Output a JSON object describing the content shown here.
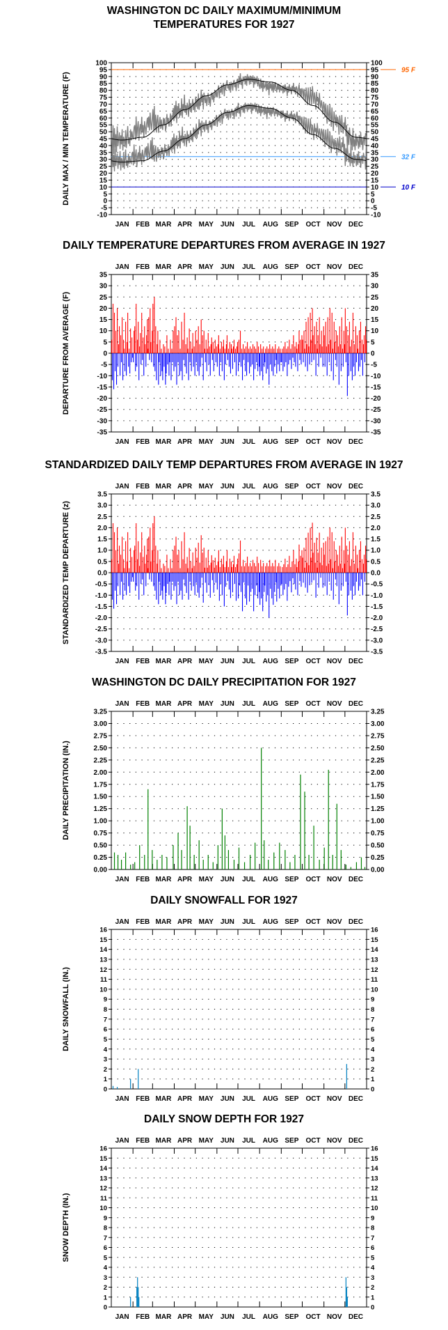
{
  "months": [
    "JAN",
    "FEB",
    "MAR",
    "APR",
    "MAY",
    "JUN",
    "JUL",
    "AUG",
    "SEP",
    "OCT",
    "NOV",
    "DEC"
  ],
  "colors": {
    "axis": "#000000",
    "max_temp_line": "#808080",
    "normal_line": "#000000",
    "ref_95": "#ff6600",
    "ref_32": "#3399ff",
    "ref_10": "#0000cc",
    "above_average": "#ff0000",
    "below_average": "#0000ff",
    "precip": "#008000",
    "snow": "#0080c0"
  },
  "chart_data": [
    {
      "id": "temps",
      "type": "line",
      "title": "WASHINGTON DC DAILY MAXIMUM/MINIMUM\nTEMPERATURES FOR 1927",
      "ylabel": "DAILY MAX / MIN TEMPERATURE (F)",
      "ylim": [
        -10,
        100
      ],
      "ystep": 5,
      "ref_lines": [
        {
          "value": 95,
          "label": "95 F",
          "color": "#ff6600"
        },
        {
          "value": 32,
          "label": "32 F",
          "color": "#3399ff"
        },
        {
          "value": 10,
          "label": "10 F",
          "color": "#0000cc"
        }
      ],
      "normal_max_monthly": [
        44,
        46,
        55,
        66,
        76,
        84,
        88,
        86,
        80,
        69,
        57,
        46
      ],
      "normal_min_monthly": [
        28,
        29,
        36,
        45,
        55,
        64,
        69,
        67,
        60,
        48,
        38,
        30
      ],
      "observed_max_monthly": [
        43,
        51,
        58,
        67,
        73,
        83,
        89,
        84,
        81,
        72,
        57,
        42
      ],
      "observed_min_monthly": [
        28,
        31,
        37,
        45,
        54,
        63,
        69,
        66,
        61,
        49,
        40,
        29
      ],
      "grid": true
    },
    {
      "id": "departures",
      "type": "bar",
      "title": "DAILY TEMPERATURE DEPARTURES FROM AVERAGE IN 1927",
      "ylabel": "DEPARTURE FROM AVERAGE (F)",
      "ylim": [
        -35,
        35
      ],
      "ystep": 5,
      "monthly_pattern": [
        [
          6,
          -12,
          22,
          -16,
          18,
          -8,
          10,
          -14,
          20,
          -6,
          4,
          12,
          -10,
          8,
          -4,
          16,
          -12,
          6,
          2,
          -8,
          14,
          -10,
          5,
          18,
          -6,
          2,
          -9,
          11,
          -4,
          7,
          -2
        ],
        [
          -4,
          10,
          12,
          -8,
          22,
          -6,
          6,
          14,
          -12,
          3,
          9,
          -5,
          18,
          -3,
          7,
          -10,
          12,
          4,
          -6,
          8,
          15,
          2,
          16,
          -3,
          20,
          5,
          -4,
          10
        ],
        [
          22,
          -6,
          25,
          -8,
          12,
          -12,
          4,
          10,
          -14,
          -4,
          6,
          -10,
          2,
          -8,
          -12,
          4,
          -6,
          3,
          -14,
          -9,
          8,
          -5,
          2,
          -10,
          -4,
          6,
          -12,
          2,
          -4,
          10,
          -8
        ],
        [
          12,
          -6,
          16,
          -14,
          8,
          -4,
          10,
          -10,
          2,
          -8,
          14,
          -12,
          6,
          -3,
          18,
          -6,
          4,
          -9,
          7,
          2,
          -12,
          11,
          -4,
          5,
          -8,
          2,
          9,
          -6,
          3,
          -10
        ],
        [
          10,
          -4,
          6,
          -8,
          12,
          -10,
          4,
          -6,
          15,
          -2,
          8,
          -12,
          10,
          2,
          -4,
          6,
          -8,
          2,
          9,
          -5,
          3,
          -10,
          4,
          7,
          -3,
          5,
          -8,
          2,
          6,
          -4,
          3
        ],
        [
          -6,
          4,
          8,
          -10,
          2,
          -4,
          5,
          -8,
          3,
          6,
          -12,
          2,
          -5,
          4,
          8,
          -3,
          2,
          -6,
          5,
          -9,
          4,
          2,
          -7,
          3,
          6,
          -4,
          2,
          -10,
          3,
          5
        ],
        [
          -8,
          6,
          -4,
          10,
          -6,
          2,
          -12,
          4,
          -3,
          2,
          -8,
          3,
          -10,
          5,
          -4,
          2,
          -9,
          3,
          -6,
          2,
          -5,
          4,
          -12,
          3,
          -7,
          2,
          -4,
          5,
          -8,
          3,
          -6
        ],
        [
          -10,
          4,
          -8,
          2,
          -12,
          3,
          -6,
          -4,
          2,
          -9,
          3,
          -7,
          2,
          -14,
          4,
          -5,
          2,
          -8,
          3,
          -10,
          2,
          -6,
          4,
          -3,
          -9,
          2,
          -5,
          3,
          -8,
          2,
          -4
        ],
        [
          -4,
          2,
          -8,
          3,
          -6,
          5,
          -4,
          2,
          -10,
          3,
          -5,
          6,
          -3,
          2,
          -7,
          4,
          -2,
          8,
          -4,
          3,
          -6,
          5,
          2,
          -8,
          4,
          10,
          -3,
          6,
          -5,
          8
        ],
        [
          6,
          -4,
          10,
          2,
          -6,
          14,
          4,
          -8,
          16,
          3,
          -5,
          18,
          6,
          -4,
          20,
          8,
          -3,
          12,
          4,
          -10,
          14,
          2,
          8,
          -6,
          16,
          4,
          -2,
          10,
          3,
          -6,
          12
        ],
        [
          8,
          -6,
          14,
          3,
          -10,
          16,
          4,
          -4,
          20,
          6,
          -8,
          18,
          2,
          -12,
          14,
          5,
          -3,
          10,
          -6,
          8,
          3,
          -14,
          12,
          4,
          -8,
          16,
          2,
          -6,
          10,
          4
        ],
        [
          20,
          -4,
          12,
          -19,
          8,
          -10,
          14,
          3,
          -8,
          6,
          -12,
          18,
          -6,
          4,
          -10,
          12,
          -4,
          8,
          2,
          -8,
          10,
          -6,
          14,
          -3,
          6,
          -10,
          4,
          8,
          -4,
          12,
          6
        ]
      ],
      "grid": true
    },
    {
      "id": "std_departures",
      "type": "bar",
      "title": "STANDARDIZED DAILY TEMP DEPARTURES FROM AVERAGE IN 1927",
      "ylabel": "STANDARDIZED TEMP DEPARTURE (z)",
      "ylim": [
        -3.5,
        3.5
      ],
      "ystep": 0.5,
      "scale_from": "departures",
      "divisor_monthly": [
        10,
        10,
        10,
        10,
        9,
        8,
        7,
        7,
        8,
        9,
        10,
        10
      ],
      "grid": true
    },
    {
      "id": "precip",
      "type": "bar",
      "title": "WASHINGTON DC DAILY PRECIPITATION FOR 1927",
      "ylabel": "DAILY PRECIPITATION (IN.)",
      "ylim": [
        0,
        3.25
      ],
      "ystep": 0.25,
      "events": [
        {
          "day": 4,
          "value": 0.35
        },
        {
          "day": 9,
          "value": 0.3
        },
        {
          "day": 14,
          "value": 0.2
        },
        {
          "day": 20,
          "value": 0.35
        },
        {
          "day": 27,
          "value": 0.1
        },
        {
          "day": 33,
          "value": 0.15
        },
        {
          "day": 40,
          "value": 0.5
        },
        {
          "day": 47,
          "value": 0.3
        },
        {
          "day": 52,
          "value": 1.65
        },
        {
          "day": 58,
          "value": 0.4
        },
        {
          "day": 65,
          "value": 0.2
        },
        {
          "day": 72,
          "value": 0.3
        },
        {
          "day": 79,
          "value": 0.25
        },
        {
          "day": 88,
          "value": 0.5
        },
        {
          "day": 95,
          "value": 0.75
        },
        {
          "day": 100,
          "value": 0.4
        },
        {
          "day": 108,
          "value": 1.3
        },
        {
          "day": 112,
          "value": 0.9
        },
        {
          "day": 118,
          "value": 0.3
        },
        {
          "day": 125,
          "value": 0.6
        },
        {
          "day": 131,
          "value": 0.2
        },
        {
          "day": 138,
          "value": 0.3
        },
        {
          "day": 145,
          "value": 0.15
        },
        {
          "day": 152,
          "value": 0.5
        },
        {
          "day": 158,
          "value": 1.25
        },
        {
          "day": 162,
          "value": 0.7
        },
        {
          "day": 167,
          "value": 0.4
        },
        {
          "day": 175,
          "value": 0.2
        },
        {
          "day": 182,
          "value": 0.45
        },
        {
          "day": 190,
          "value": 0.15
        },
        {
          "day": 198,
          "value": 0.3
        },
        {
          "day": 205,
          "value": 0.55
        },
        {
          "day": 214,
          "value": 2.5
        },
        {
          "day": 218,
          "value": 0.6
        },
        {
          "day": 224,
          "value": 0.2
        },
        {
          "day": 232,
          "value": 0.35
        },
        {
          "day": 240,
          "value": 0.55
        },
        {
          "day": 248,
          "value": 0.4
        },
        {
          "day": 255,
          "value": 0.15
        },
        {
          "day": 262,
          "value": 0.3
        },
        {
          "day": 270,
          "value": 1.95
        },
        {
          "day": 276,
          "value": 1.6
        },
        {
          "day": 282,
          "value": 0.3
        },
        {
          "day": 289,
          "value": 0.9
        },
        {
          "day": 297,
          "value": 0.2
        },
        {
          "day": 304,
          "value": 0.45
        },
        {
          "day": 310,
          "value": 2.05
        },
        {
          "day": 316,
          "value": 0.3
        },
        {
          "day": 322,
          "value": 1.35
        },
        {
          "day": 328,
          "value": 0.4
        },
        {
          "day": 335,
          "value": 0.1
        },
        {
          "day": 342,
          "value": 0.05
        },
        {
          "day": 350,
          "value": 0.15
        },
        {
          "day": 357,
          "value": 0.25
        },
        {
          "day": 362,
          "value": 0.05
        }
      ],
      "grid": true
    },
    {
      "id": "snowfall",
      "type": "bar",
      "title": "DAILY SNOWFALL FOR 1927",
      "ylabel": "DAILY SNOWFALL (IN.)",
      "ylim": [
        0,
        16
      ],
      "ystep": 1,
      "events": [
        {
          "day": 2,
          "value": 0.3
        },
        {
          "day": 8,
          "value": 0.2
        },
        {
          "day": 27,
          "value": 1.0
        },
        {
          "day": 38,
          "value": 2.0
        },
        {
          "day": 336,
          "value": 2.5
        }
      ],
      "grid": true
    },
    {
      "id": "snowdepth",
      "type": "bar",
      "title": "DAILY SNOW DEPTH FOR 1927",
      "ylabel": "SNOW DEPTH (IN.)",
      "ylim": [
        0,
        16
      ],
      "ystep": 1,
      "events": [
        {
          "day": 27,
          "value": 1.0
        },
        {
          "day": 36,
          "value": 2.0
        },
        {
          "day": 37,
          "value": 3.0
        },
        {
          "day": 38,
          "value": 2.0
        },
        {
          "day": 39,
          "value": 1.0
        },
        {
          "day": 335,
          "value": 3.0
        },
        {
          "day": 336,
          "value": 2.0
        },
        {
          "day": 337,
          "value": 1.0
        }
      ],
      "grid": true
    }
  ]
}
